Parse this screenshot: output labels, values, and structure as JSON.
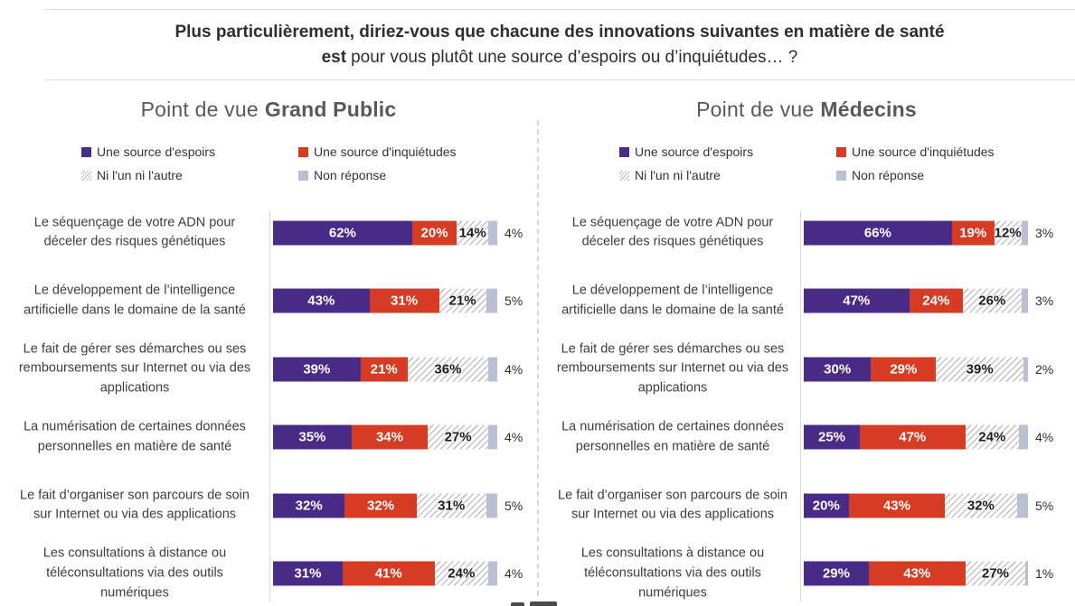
{
  "title": {
    "line1": "Plus particulièrement, diriez-vous que chacune des innovations suivantes en matière de santé",
    "line2_bold": "est",
    "line2_rest": "pour vous plutôt une source d’espoirs ou d’inquiétudes… ?"
  },
  "legend": {
    "espoirs": "Une source d'espoirs",
    "inquietudes": "Une source d'inquiétudes",
    "ni": "Ni l'un ni l'autre",
    "non": "Non réponse"
  },
  "colors": {
    "espoirs": "#482b87",
    "inquietudes": "#d63b23",
    "ni_stripe": "#c3c3c3",
    "non_reponse": "#b7c0d4",
    "heading": "#595959",
    "title_text": "#2e2e2e"
  },
  "panels": [
    {
      "heading_prefix": "Point de vue",
      "heading_name": "Grand Public",
      "rows": [
        {
          "label": "Le séquençage de votre ADN pour déceler des risques génétiques",
          "espoirs": 62,
          "inquietudes": 20,
          "ni": 14,
          "non": 4
        },
        {
          "label": "Le développement de l’intelligence artificielle dans le domaine de la santé",
          "espoirs": 43,
          "inquietudes": 31,
          "ni": 21,
          "non": 5
        },
        {
          "label": "Le fait de gérer ses démarches ou ses remboursements sur Internet ou via des applications",
          "espoirs": 39,
          "inquietudes": 21,
          "ni": 36,
          "non": 4
        },
        {
          "label": "La numérisation de certaines données personnelles en matière de santé",
          "espoirs": 35,
          "inquietudes": 34,
          "ni": 27,
          "non": 4
        },
        {
          "label": "Le fait d’organiser son parcours de soin sur Internet ou via des applications",
          "espoirs": 32,
          "inquietudes": 32,
          "ni": 31,
          "non": 5
        },
        {
          "label": "Les consultations à distance ou téléconsultations via des outils numériques",
          "espoirs": 31,
          "inquietudes": 41,
          "ni": 24,
          "non": 4
        }
      ]
    },
    {
      "heading_prefix": "Point de vue",
      "heading_name": "Médecins",
      "rows": [
        {
          "label": "Le séquençage de votre ADN pour déceler des risques génétiques",
          "espoirs": 66,
          "inquietudes": 19,
          "ni": 12,
          "non": 3
        },
        {
          "label": "Le développement de l’intelligence artificielle dans le domaine de la santé",
          "espoirs": 47,
          "inquietudes": 24,
          "ni": 26,
          "non": 3
        },
        {
          "label": "Le fait de gérer ses démarches ou ses remboursements sur Internet ou via des applications",
          "espoirs": 30,
          "inquietudes": 29,
          "ni": 39,
          "non": 2
        },
        {
          "label": "La numérisation de certaines données personnelles en matière de santé",
          "espoirs": 25,
          "inquietudes": 47,
          "ni": 24,
          "non": 4
        },
        {
          "label": "Le fait d’organiser son parcours de soin sur Internet ou via des applications",
          "espoirs": 20,
          "inquietudes": 43,
          "ni": 32,
          "non": 5
        },
        {
          "label": "Les consultations à distance ou téléconsultations via des outils numériques",
          "espoirs": 29,
          "inquietudes": 43,
          "ni": 27,
          "non": 1
        }
      ]
    }
  ],
  "chart_data": {
    "type": "bar",
    "orientation": "horizontal-stacked",
    "unit": "%",
    "xlim": [
      0,
      100
    ],
    "title": "Plus particulièrement, diriez-vous que chacune des innovations suivantes en matière de santé est pour vous plutôt une source d’espoirs ou d’inquiétudes… ?",
    "legend_entries": [
      "Une source d'espoirs",
      "Une source d'inquiétudes",
      "Ni l'un ni l'autre",
      "Non réponse"
    ],
    "legend_position": "top",
    "categories": [
      "Le séquençage de votre ADN pour déceler des risques génétiques",
      "Le développement de l’intelligence artificielle dans le domaine de la santé",
      "Le fait de gérer ses démarches ou ses remboursements sur Internet ou via des applications",
      "La numérisation de certaines données personnelles en matière de santé",
      "Le fait d’organiser son parcours de soin sur Internet ou via des applications",
      "Les consultations à distance ou téléconsultations via des outils numériques"
    ],
    "panels": [
      {
        "name": "Point de vue Grand Public",
        "series": [
          {
            "name": "Une source d'espoirs",
            "values": [
              62,
              43,
              39,
              35,
              32,
              31
            ]
          },
          {
            "name": "Une source d'inquiétudes",
            "values": [
              20,
              31,
              21,
              34,
              32,
              41
            ]
          },
          {
            "name": "Ni l'un ni l'autre",
            "values": [
              14,
              21,
              36,
              27,
              31,
              24
            ]
          },
          {
            "name": "Non réponse",
            "values": [
              4,
              5,
              4,
              4,
              5,
              4
            ]
          }
        ]
      },
      {
        "name": "Point de vue Médecins",
        "series": [
          {
            "name": "Une source d'espoirs",
            "values": [
              66,
              47,
              30,
              25,
              20,
              29
            ]
          },
          {
            "name": "Une source d'inquiétudes",
            "values": [
              19,
              24,
              29,
              47,
              43,
              43
            ]
          },
          {
            "name": "Ni l'un ni l'autre",
            "values": [
              12,
              26,
              39,
              24,
              32,
              27
            ]
          },
          {
            "name": "Non réponse",
            "values": [
              3,
              3,
              2,
              4,
              5,
              1
            ]
          }
        ]
      }
    ]
  }
}
